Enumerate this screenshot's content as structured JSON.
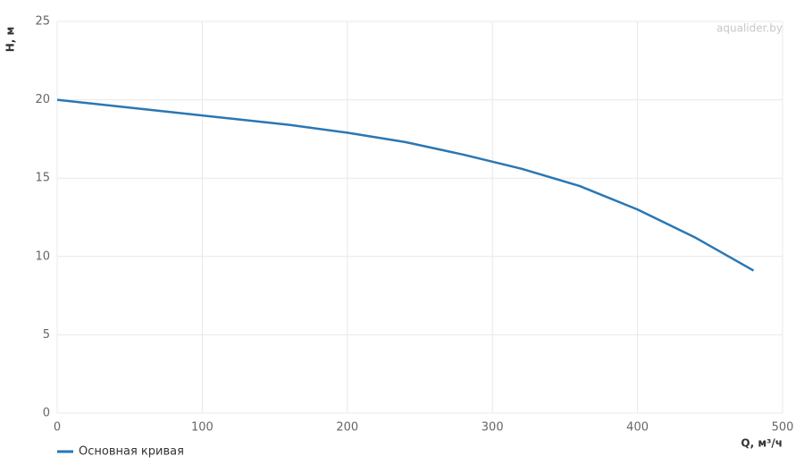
{
  "chart_data": {
    "type": "line",
    "watermark": "aqualider.by",
    "xlabel": "Q, м³/ч",
    "ylabel": "H, м",
    "x": [
      0,
      40,
      80,
      120,
      160,
      200,
      240,
      280,
      320,
      360,
      400,
      440,
      480
    ],
    "series": [
      {
        "name": "Основная кривая",
        "color": "#2a77b4",
        "values": [
          20,
          19.6,
          19.2,
          18.8,
          18.4,
          17.9,
          17.3,
          16.5,
          15.6,
          14.5,
          13.0,
          11.2,
          9.1
        ]
      }
    ],
    "xlim": [
      0,
      500
    ],
    "xticks": [
      0,
      100,
      200,
      300,
      400,
      500
    ],
    "ylim": [
      0,
      25
    ],
    "yticks": [
      0,
      5,
      10,
      15,
      20,
      25
    ],
    "grid": true
  }
}
